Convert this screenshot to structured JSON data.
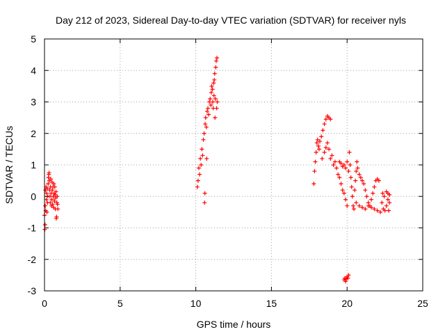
{
  "chart_data": {
    "type": "scatter",
    "title": "Day 212 of 2023, Sidereal Day-to-day VTEC variation (SDTVAR) for receiver nyls",
    "xlabel": "GPS time / hours",
    "ylabel": "SDTVAR / TECUs",
    "xlim": [
      0,
      25
    ],
    "ylim": [
      -3,
      5
    ],
    "xticks": [
      "0",
      "5",
      "10",
      "15",
      "20",
      "25"
    ],
    "yticks": [
      "-3",
      "-2",
      "-1",
      "0",
      "1",
      "2",
      "3",
      "4",
      "5"
    ],
    "grid": true,
    "marker": "plus",
    "color": "#ff0000",
    "series": [
      {
        "name": "SDTVAR",
        "points": [
          [
            0.0,
            -0.6
          ],
          [
            0.02,
            -1.05
          ],
          [
            0.04,
            -0.9
          ],
          [
            0.05,
            -0.3
          ],
          [
            0.06,
            0.2
          ],
          [
            0.08,
            -0.45
          ],
          [
            0.1,
            0.3
          ],
          [
            0.12,
            -0.1
          ],
          [
            0.14,
            0.1
          ],
          [
            0.16,
            -0.5
          ],
          [
            0.18,
            0.25
          ],
          [
            0.2,
            -0.2
          ],
          [
            0.22,
            0.0
          ],
          [
            0.24,
            0.4
          ],
          [
            0.26,
            0.6
          ],
          [
            0.28,
            0.7
          ],
          [
            0.3,
            0.75
          ],
          [
            0.32,
            0.5
          ],
          [
            0.34,
            0.2
          ],
          [
            0.36,
            0.0
          ],
          [
            0.38,
            -0.2
          ],
          [
            0.4,
            0.3
          ],
          [
            0.42,
            0.55
          ],
          [
            0.44,
            0.1
          ],
          [
            0.46,
            -0.3
          ],
          [
            0.48,
            -0.1
          ],
          [
            0.5,
            0.45
          ],
          [
            0.52,
            0.2
          ],
          [
            0.54,
            -0.25
          ],
          [
            0.56,
            0.3
          ],
          [
            0.58,
            0.0
          ],
          [
            0.6,
            -0.35
          ],
          [
            0.62,
            0.4
          ],
          [
            0.64,
            0.1
          ],
          [
            0.66,
            -0.15
          ],
          [
            0.68,
            0.3
          ],
          [
            0.7,
            0.05
          ],
          [
            0.72,
            -0.4
          ],
          [
            0.74,
            -0.05
          ],
          [
            0.76,
            0.15
          ],
          [
            0.78,
            -0.7
          ],
          [
            0.8,
            -0.65
          ],
          [
            0.82,
            -0.2
          ],
          [
            0.84,
            0.0
          ],
          [
            0.86,
            -0.25
          ],
          [
            0.88,
            -0.4
          ],
          [
            10.1,
            0.3
          ],
          [
            10.15,
            0.5
          ],
          [
            10.2,
            0.9
          ],
          [
            10.25,
            0.7
          ],
          [
            10.3,
            1.2
          ],
          [
            10.35,
            1.0
          ],
          [
            10.4,
            1.5
          ],
          [
            10.45,
            1.3
          ],
          [
            10.5,
            1.8
          ],
          [
            10.55,
            2.0
          ],
          [
            10.58,
            -0.2
          ],
          [
            10.6,
            0.1
          ],
          [
            10.62,
            2.3
          ],
          [
            10.65,
            2.5
          ],
          [
            10.7,
            2.2
          ],
          [
            10.72,
            1.2
          ],
          [
            10.75,
            2.7
          ],
          [
            10.8,
            2.8
          ],
          [
            10.85,
            2.6
          ],
          [
            10.9,
            3.0
          ],
          [
            10.95,
            3.1
          ],
          [
            11.0,
            2.9
          ],
          [
            11.02,
            3.3
          ],
          [
            11.05,
            3.5
          ],
          [
            11.1,
            3.4
          ],
          [
            11.12,
            3.0
          ],
          [
            11.15,
            2.8
          ],
          [
            11.18,
            3.6
          ],
          [
            11.2,
            3.2
          ],
          [
            11.22,
            3.7
          ],
          [
            11.25,
            3.9
          ],
          [
            11.27,
            2.5
          ],
          [
            11.3,
            3.1
          ],
          [
            11.32,
            4.1
          ],
          [
            11.35,
            4.3
          ],
          [
            11.38,
            2.8
          ],
          [
            11.4,
            4.4
          ],
          [
            11.42,
            3.0
          ],
          [
            17.8,
            0.4
          ],
          [
            17.85,
            0.8
          ],
          [
            17.9,
            1.1
          ],
          [
            17.95,
            1.4
          ],
          [
            18.0,
            1.7
          ],
          [
            18.05,
            1.8
          ],
          [
            18.1,
            1.6
          ],
          [
            18.15,
            1.5
          ],
          [
            18.2,
            1.75
          ],
          [
            18.3,
            1.9
          ],
          [
            18.4,
            2.1
          ],
          [
            18.5,
            2.3
          ],
          [
            18.6,
            2.45
          ],
          [
            18.7,
            2.55
          ],
          [
            18.8,
            2.5
          ],
          [
            18.9,
            2.45
          ],
          [
            18.35,
            1.2
          ],
          [
            18.5,
            1.4
          ],
          [
            18.6,
            1.55
          ],
          [
            18.7,
            1.7
          ],
          [
            18.8,
            1.5
          ],
          [
            18.9,
            1.2
          ],
          [
            19.0,
            1.3
          ],
          [
            19.1,
            1.0
          ],
          [
            19.2,
            1.1
          ],
          [
            19.3,
            0.9
          ],
          [
            19.4,
            0.7
          ],
          [
            19.5,
            0.6
          ],
          [
            19.6,
            0.4
          ],
          [
            19.7,
            0.2
          ],
          [
            19.8,
            0.1
          ],
          [
            19.9,
            -0.1
          ],
          [
            20.0,
            -0.3
          ],
          [
            19.5,
            1.1
          ],
          [
            19.6,
            1.05
          ],
          [
            19.7,
            0.95
          ],
          [
            19.8,
            1.0
          ],
          [
            19.9,
            0.9
          ],
          [
            20.0,
            1.1
          ],
          [
            20.1,
            0.8
          ],
          [
            20.15,
            1.4
          ],
          [
            20.2,
            1.0
          ],
          [
            20.25,
            0.6
          ],
          [
            20.3,
            0.3
          ],
          [
            20.35,
            0.0
          ],
          [
            20.4,
            -0.3
          ],
          [
            20.45,
            -0.4
          ],
          [
            20.5,
            0.2
          ],
          [
            20.55,
            0.5
          ],
          [
            20.6,
            0.8
          ],
          [
            20.65,
            1.1
          ],
          [
            20.7,
            0.9
          ],
          [
            20.8,
            0.7
          ],
          [
            20.9,
            0.6
          ],
          [
            21.0,
            0.5
          ],
          [
            21.1,
            0.4
          ],
          [
            21.2,
            0.2
          ],
          [
            21.3,
            0.0
          ],
          [
            21.4,
            -0.2
          ],
          [
            21.5,
            -0.3
          ],
          [
            21.6,
            -0.1
          ],
          [
            21.7,
            0.1
          ],
          [
            21.8,
            0.3
          ],
          [
            21.9,
            0.5
          ],
          [
            22.0,
            0.55
          ],
          [
            22.1,
            0.5
          ],
          [
            20.6,
            -0.2
          ],
          [
            20.8,
            -0.3
          ],
          [
            21.0,
            -0.35
          ],
          [
            21.2,
            -0.4
          ],
          [
            21.4,
            -0.3
          ],
          [
            21.6,
            -0.35
          ],
          [
            21.8,
            -0.4
          ],
          [
            22.0,
            -0.45
          ],
          [
            22.2,
            -0.5
          ],
          [
            22.4,
            -0.4
          ],
          [
            22.6,
            -0.3
          ],
          [
            22.7,
            -0.1
          ],
          [
            22.8,
            0.05
          ],
          [
            22.75,
            -0.45
          ],
          [
            22.5,
            -0.45
          ],
          [
            22.3,
            -0.2
          ],
          [
            22.35,
            0.1
          ],
          [
            22.45,
            0.0
          ],
          [
            22.6,
            0.15
          ],
          [
            22.7,
            0.1
          ],
          [
            22.8,
            -0.2
          ],
          [
            19.8,
            -2.65
          ],
          [
            19.85,
            -2.6
          ],
          [
            19.9,
            -2.7
          ],
          [
            19.95,
            -2.62
          ],
          [
            20.0,
            -2.55
          ],
          [
            20.05,
            -2.6
          ],
          [
            20.1,
            -2.5
          ]
        ]
      }
    ]
  }
}
